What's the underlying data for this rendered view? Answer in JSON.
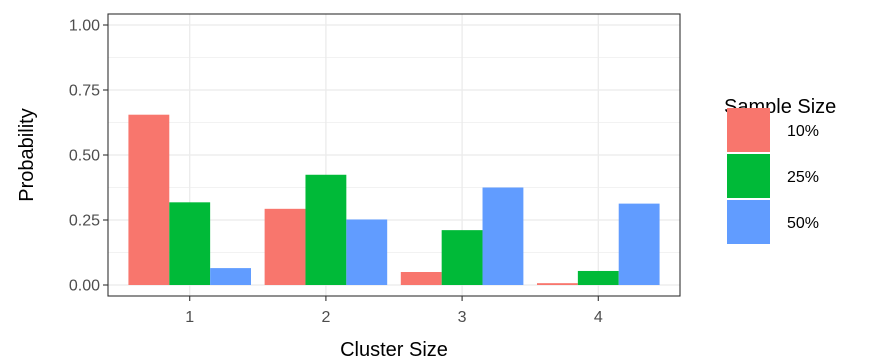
{
  "chart_data": {
    "type": "bar",
    "title": "",
    "xlabel": "Cluster Size",
    "ylabel": "Probability",
    "categories": [
      "1",
      "2",
      "3",
      "4"
    ],
    "ylim": [
      0,
      1
    ],
    "yticks": [
      "0.00",
      "0.25",
      "0.50",
      "0.75",
      "1.00"
    ],
    "grid": true,
    "legend": {
      "title": "Sample Size",
      "position": "right"
    },
    "series": [
      {
        "name": "10%",
        "color": "#F8766D",
        "values": [
          0.655,
          0.293,
          0.05,
          0.007
        ]
      },
      {
        "name": "25%",
        "color": "#00BA38",
        "values": [
          0.318,
          0.424,
          0.211,
          0.054
        ]
      },
      {
        "name": "50%",
        "color": "#619CFF",
        "values": [
          0.065,
          0.252,
          0.375,
          0.313
        ]
      }
    ]
  }
}
